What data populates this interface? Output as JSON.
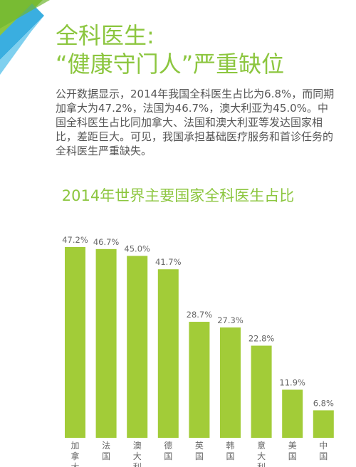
{
  "header": {
    "title_line1": "全科医生:",
    "title_line2": "“健康守门人”严重缺位"
  },
  "body": {
    "paragraph": "公开数据显示，2014年我国全科医生占比为6.8%，而同期加拿大为47.2%，法国为46.7%，澳大利亚为45.0%。中国全科医生占比同加拿大、法国和澳大利亚等发达国家相比，差距巨大。可见，我国承担基础医疗服务和首诊任务的全科医生严重缺失。"
  },
  "colors": {
    "accent": "#8cc63f",
    "bar": "#a2cc38",
    "corner_blue": "#3aaee0",
    "text": "#555555"
  },
  "chart_data": {
    "type": "bar",
    "title": "2014年世界主要国家全科医生占比",
    "categories": [
      "加拿大",
      "法国",
      "澳大利",
      "德国",
      "英国",
      "韩国",
      "意大利",
      "美国",
      "中国"
    ],
    "values": [
      47.2,
      46.7,
      45.0,
      41.7,
      28.7,
      27.3,
      22.8,
      11.9,
      6.8
    ],
    "value_labels": [
      "47.2%",
      "46.7%",
      "45.0%",
      "41.7%",
      "28.7%",
      "27.3%",
      "22.8%",
      "11.9%",
      "6.8%"
    ],
    "xlabel": "",
    "ylabel": "",
    "ylim": [
      0,
      47.2
    ],
    "grid": false
  }
}
